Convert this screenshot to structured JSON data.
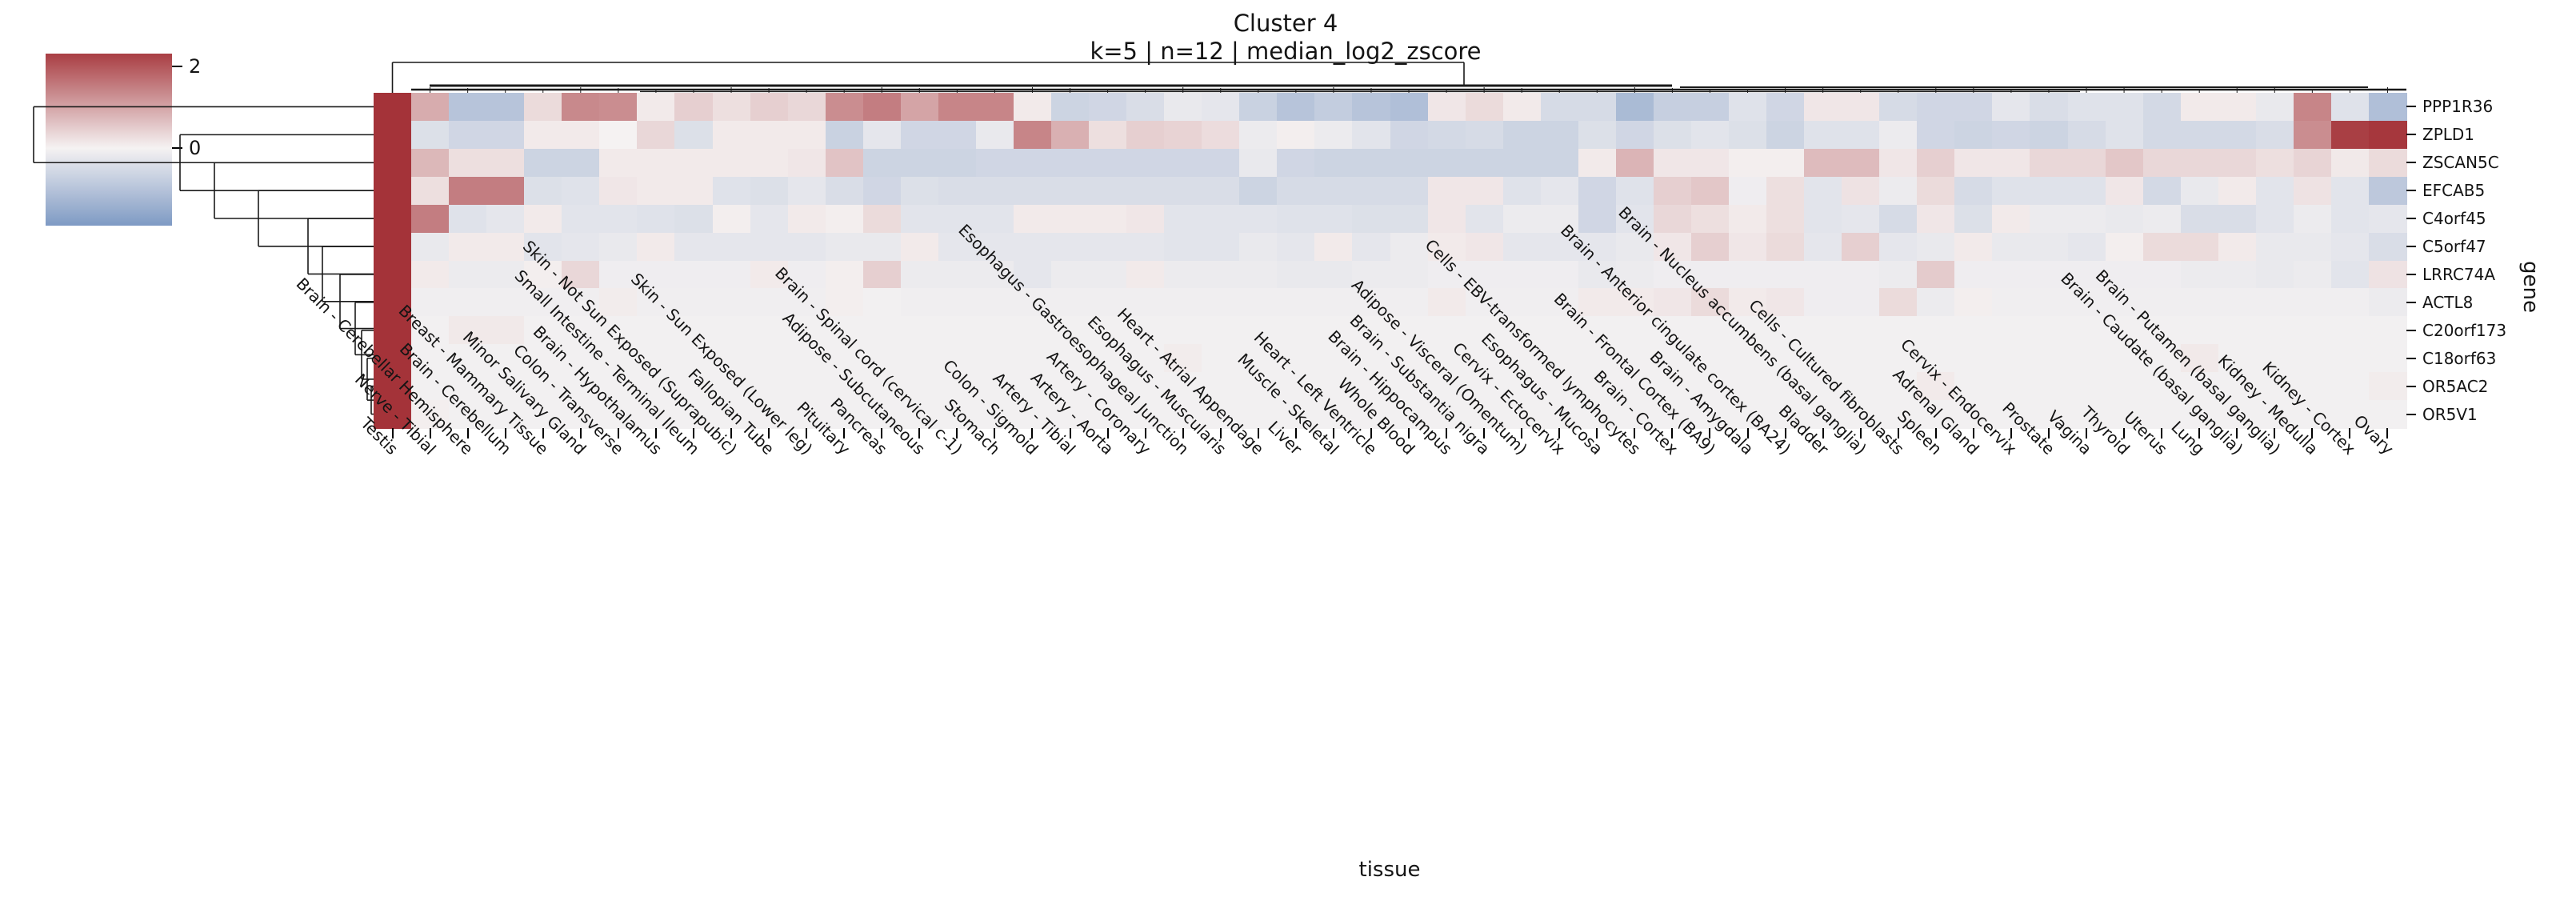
{
  "header": {
    "title": "Cluster 4",
    "subtitle": "k=5 | n=12 | median_log2_zscore"
  },
  "colorbar": {
    "tick_labels": [
      "2",
      "0"
    ],
    "tick_values": [
      2,
      0
    ],
    "top_color": "#a93a40",
    "center_color": "#f6f3f2",
    "bottom_color": "#7191c1"
  },
  "chart_data": {
    "type": "heatmap",
    "title": "Cluster 4",
    "subtitle": "k=5 | n=12 | median_log2_zscore",
    "xlabel": "tissue",
    "ylabel": "gene",
    "legend_position": "upper-left-colorbar",
    "grid": false,
    "vmin": -2.45,
    "vmax": 2.45,
    "cmap": {
      "negative": "#5c81b7",
      "center": "#f5f2f2",
      "positive": "#a43339"
    },
    "rows": [
      "PPP1R36",
      "ZPLD1",
      "ZSCAN5C",
      "EFCAB5",
      "C4orf45",
      "C5orf47",
      "LRRC74A",
      "ACTL8",
      "C20orf173",
      "C18orf63",
      "OR5AC2",
      "OR5V1"
    ],
    "columns": [
      "Testis",
      "Nerve - Tibial",
      "Brain - Cerebellar Hemisphere",
      "Brain - Cerebellum",
      "Breast - Mammary Tissue",
      "Minor Salivary Gland",
      "Colon - Transverse",
      "Brain - Hypothalamus",
      "Small Intestine - Terminal Ileum",
      "Skin - Not Sun Exposed (Suprapubic)",
      "Fallopian Tube",
      "Skin - Sun Exposed (Lower leg)",
      "Pituitary",
      "Pancreas",
      "Adipose - Subcutaneous",
      "Brain - Spinal cord (cervical c-1)",
      "Stomach",
      "Colon - Sigmoid",
      "Artery - Tibial",
      "Artery - Aorta",
      "Artery - Coronary",
      "Esophagus - Gastroesophageal Junction",
      "Esophagus - Muscularis",
      "Heart - Atrial Appendage",
      "Liver",
      "Muscle - Skeletal",
      "Heart - Left Ventricle",
      "Whole Blood",
      "Brain - Hippocampus",
      "Brain - Substantia nigra",
      "Adipose - Visceral (Omentum)",
      "Cervix - Ectocervix",
      "Esophagus - Mucosa",
      "Cells - EBV-transformed lymphocytes",
      "Brain - Cortex",
      "Brain - Frontal Cortex (BA9)",
      "Brain - Amygdala",
      "Brain - Anterior cingulate cortex (BA24)",
      "Bladder",
      "Brain - Nucleus accumbens (basal ganglia)",
      "Cells - Cultured fibroblasts",
      "Spleen",
      "Adrenal Gland",
      "Cervix - Endocervix",
      "Prostate",
      "Vagina",
      "Thyroid",
      "Uterus",
      "Lung",
      "Brain - Caudate (basal ganglia)",
      "Brain - Putamen (basal ganglia)",
      "Kidney - Medulla",
      "Kidney - Cortex",
      "Ovary"
    ],
    "values": [
      [
        2.45,
        0.9,
        -1.0,
        -1.0,
        0.3,
        1.35,
        1.3,
        0.1,
        0.45,
        0.25,
        0.45,
        0.35,
        1.3,
        1.5,
        1.0,
        1.4,
        1.4,
        0.1,
        -0.65,
        -0.6,
        -0.45,
        -0.2,
        -0.25,
        -0.7,
        -1.0,
        -0.8,
        -1.0,
        -1.1,
        0.15,
        0.3,
        0.1,
        -0.5,
        -0.5,
        -1.2,
        -0.75,
        -0.75,
        -0.35,
        -0.6,
        0.15,
        0.15,
        -0.5,
        -0.6,
        -0.6,
        -0.25,
        -0.45,
        -0.35,
        -0.35,
        -0.55,
        0.1,
        0.1,
        -0.2,
        1.4,
        -0.35,
        -1.1
      ],
      [
        2.45,
        -0.4,
        -0.6,
        -0.6,
        0.1,
        0.1,
        0.0,
        0.35,
        -0.4,
        0.1,
        0.1,
        0.1,
        -0.7,
        -0.25,
        -0.6,
        -0.6,
        -0.2,
        1.4,
        0.85,
        0.25,
        0.45,
        0.4,
        0.28,
        -0.15,
        0.05,
        -0.15,
        -0.3,
        -0.6,
        -0.55,
        -0.5,
        -0.65,
        -0.65,
        -0.4,
        -0.6,
        -0.4,
        -0.3,
        -0.4,
        -0.65,
        -0.35,
        -0.35,
        -0.15,
        -0.6,
        -0.65,
        -0.6,
        -0.65,
        -0.5,
        -0.35,
        -0.55,
        -0.55,
        -0.55,
        -0.45,
        1.3,
        2.3,
        2.4
      ],
      [
        2.45,
        0.75,
        0.25,
        0.25,
        -0.65,
        -0.65,
        0.1,
        0.1,
        0.1,
        0.1,
        0.1,
        0.15,
        0.6,
        -0.65,
        -0.65,
        -0.65,
        -0.6,
        -0.6,
        -0.6,
        -0.6,
        -0.6,
        -0.6,
        -0.6,
        -0.2,
        -0.6,
        -0.65,
        -0.65,
        -0.65,
        -0.65,
        -0.65,
        -0.65,
        -0.65,
        0.1,
        0.8,
        0.15,
        0.15,
        0.05,
        0.05,
        0.7,
        0.7,
        0.15,
        0.45,
        0.15,
        0.15,
        0.35,
        0.35,
        0.55,
        0.35,
        0.35,
        0.35,
        0.25,
        0.38,
        0.12,
        0.3
      ],
      [
        2.45,
        0.25,
        1.5,
        1.5,
        -0.4,
        -0.35,
        0.15,
        0.1,
        0.1,
        -0.35,
        -0.4,
        -0.25,
        -0.45,
        -0.6,
        -0.4,
        -0.45,
        -0.45,
        -0.45,
        -0.45,
        -0.45,
        -0.45,
        -0.45,
        -0.45,
        -0.65,
        -0.5,
        -0.5,
        -0.5,
        -0.5,
        0.15,
        0.15,
        -0.35,
        -0.25,
        -0.6,
        -0.35,
        0.45,
        0.55,
        -0.1,
        0.25,
        -0.3,
        0.2,
        -0.15,
        0.3,
        -0.5,
        -0.35,
        -0.35,
        -0.35,
        0.15,
        -0.55,
        -0.2,
        0.1,
        -0.3,
        0.2,
        -0.3,
        -0.9
      ],
      [
        2.45,
        1.5,
        -0.35,
        -0.25,
        0.1,
        -0.3,
        -0.3,
        -0.35,
        -0.4,
        0.05,
        -0.25,
        0.1,
        0.05,
        0.3,
        -0.3,
        -0.3,
        -0.3,
        0.1,
        0.1,
        0.1,
        0.15,
        -0.3,
        -0.3,
        -0.3,
        -0.35,
        -0.35,
        -0.4,
        -0.4,
        0.15,
        -0.3,
        -0.15,
        -0.15,
        -0.6,
        -0.3,
        0.35,
        0.25,
        0.1,
        0.25,
        -0.3,
        -0.25,
        -0.5,
        0.15,
        -0.4,
        0.1,
        -0.15,
        -0.15,
        -0.2,
        -0.15,
        -0.45,
        -0.45,
        -0.3,
        -0.15,
        -0.3,
        -0.25
      ],
      [
        2.45,
        -0.2,
        0.1,
        0.1,
        -0.3,
        -0.25,
        -0.2,
        0.1,
        -0.25,
        -0.25,
        -0.25,
        -0.25,
        -0.2,
        -0.2,
        0.1,
        -0.25,
        -0.25,
        -0.25,
        -0.25,
        -0.25,
        -0.25,
        -0.3,
        -0.3,
        -0.2,
        -0.25,
        0.1,
        -0.25,
        -0.15,
        0.1,
        0.15,
        -0.25,
        -0.25,
        -0.25,
        -0.2,
        0.15,
        0.45,
        0.15,
        0.3,
        -0.25,
        0.45,
        -0.25,
        -0.2,
        0.1,
        -0.2,
        -0.2,
        -0.25,
        0.05,
        0.3,
        0.3,
        0.1,
        -0.2,
        -0.2,
        -0.25,
        -0.45
      ],
      [
        2.45,
        0.1,
        -0.15,
        -0.15,
        0.05,
        0.35,
        -0.1,
        -0.1,
        -0.1,
        -0.1,
        0.1,
        -0.1,
        0.05,
        0.45,
        -0.15,
        -0.15,
        -0.15,
        -0.25,
        -0.15,
        -0.15,
        0.1,
        -0.15,
        -0.15,
        -0.15,
        -0.2,
        -0.2,
        -0.15,
        -0.15,
        -0.1,
        -0.1,
        -0.1,
        -0.1,
        -0.2,
        -0.15,
        -0.1,
        -0.1,
        -0.1,
        -0.1,
        -0.1,
        -0.1,
        -0.15,
        0.5,
        -0.1,
        -0.1,
        -0.1,
        -0.1,
        -0.1,
        -0.1,
        -0.15,
        -0.15,
        -0.2,
        -0.15,
        -0.3,
        0.2
      ],
      [
        2.45,
        -0.08,
        -0.08,
        -0.08,
        -0.08,
        -0.08,
        0.08,
        -0.08,
        -0.08,
        -0.08,
        -0.08,
        -0.08,
        0.05,
        -0.05,
        -0.08,
        -0.08,
        -0.08,
        -0.08,
        -0.08,
        -0.08,
        -0.08,
        -0.08,
        -0.08,
        -0.08,
        -0.08,
        -0.08,
        -0.08,
        -0.08,
        0.1,
        -0.08,
        -0.08,
        -0.08,
        0.1,
        0.1,
        0.15,
        0.3,
        0.1,
        0.15,
        -0.1,
        -0.1,
        0.3,
        -0.15,
        0.05,
        -0.08,
        -0.08,
        -0.08,
        -0.08,
        -0.08,
        -0.08,
        -0.08,
        -0.08,
        -0.08,
        -0.08,
        -0.15
      ],
      [
        2.45,
        -0.05,
        0.12,
        0.12,
        -0.05,
        -0.05,
        -0.05,
        -0.05,
        -0.05,
        -0.05,
        -0.05,
        -0.05,
        -0.05,
        -0.05,
        -0.05,
        -0.05,
        -0.05,
        -0.05,
        -0.05,
        -0.05,
        -0.05,
        -0.05,
        -0.05,
        -0.05,
        -0.05,
        -0.05,
        -0.05,
        -0.05,
        -0.05,
        -0.05,
        -0.05,
        -0.05,
        -0.05,
        -0.05,
        -0.05,
        -0.05,
        -0.05,
        -0.05,
        -0.05,
        -0.05,
        -0.05,
        -0.05,
        -0.05,
        -0.05,
        -0.05,
        -0.05,
        -0.05,
        -0.05,
        -0.05,
        -0.05,
        -0.05,
        -0.05,
        -0.05,
        -0.05
      ],
      [
        2.45,
        -0.05,
        -0.05,
        -0.05,
        -0.05,
        -0.05,
        -0.05,
        -0.05,
        -0.05,
        -0.05,
        -0.05,
        -0.05,
        -0.05,
        -0.05,
        -0.05,
        -0.05,
        -0.05,
        -0.05,
        -0.05,
        -0.05,
        -0.05,
        0.08,
        -0.05,
        -0.05,
        -0.05,
        -0.05,
        -0.05,
        -0.05,
        -0.05,
        -0.05,
        -0.05,
        -0.05,
        -0.05,
        -0.05,
        -0.05,
        -0.05,
        -0.05,
        -0.05,
        -0.05,
        -0.05,
        -0.05,
        -0.05,
        -0.05,
        -0.05,
        -0.05,
        -0.05,
        -0.05,
        -0.05,
        0.12,
        -0.05,
        -0.05,
        -0.05,
        -0.05,
        -0.05
      ],
      [
        2.45,
        -0.05,
        -0.05,
        -0.05,
        -0.05,
        -0.05,
        -0.05,
        -0.05,
        -0.05,
        -0.05,
        -0.05,
        -0.05,
        -0.05,
        -0.05,
        -0.05,
        -0.05,
        -0.05,
        -0.05,
        -0.05,
        -0.05,
        -0.05,
        -0.05,
        -0.05,
        -0.05,
        -0.05,
        -0.05,
        -0.05,
        -0.05,
        -0.05,
        -0.05,
        -0.05,
        -0.05,
        -0.05,
        -0.05,
        -0.05,
        -0.05,
        -0.05,
        -0.05,
        -0.05,
        -0.05,
        -0.05,
        0.1,
        -0.05,
        -0.05,
        -0.05,
        -0.05,
        -0.05,
        -0.05,
        -0.05,
        -0.05,
        -0.05,
        -0.05,
        -0.05,
        0.08
      ],
      [
        2.45,
        0.05,
        -0.05,
        -0.05,
        -0.05,
        -0.05,
        -0.05,
        -0.05,
        -0.05,
        -0.05,
        -0.05,
        -0.05,
        -0.05,
        -0.05,
        -0.05,
        -0.05,
        -0.05,
        -0.05,
        -0.05,
        -0.05,
        -0.05,
        -0.05,
        -0.05,
        -0.05,
        -0.05,
        -0.05,
        -0.05,
        -0.05,
        -0.05,
        -0.05,
        -0.05,
        -0.05,
        -0.05,
        -0.05,
        -0.05,
        -0.05,
        -0.05,
        -0.05,
        -0.05,
        -0.05,
        -0.05,
        -0.05,
        -0.05,
        -0.05,
        -0.05,
        -0.05,
        -0.05,
        -0.05,
        -0.05,
        -0.05,
        -0.05,
        -0.05,
        -0.05,
        -0.05
      ]
    ]
  }
}
